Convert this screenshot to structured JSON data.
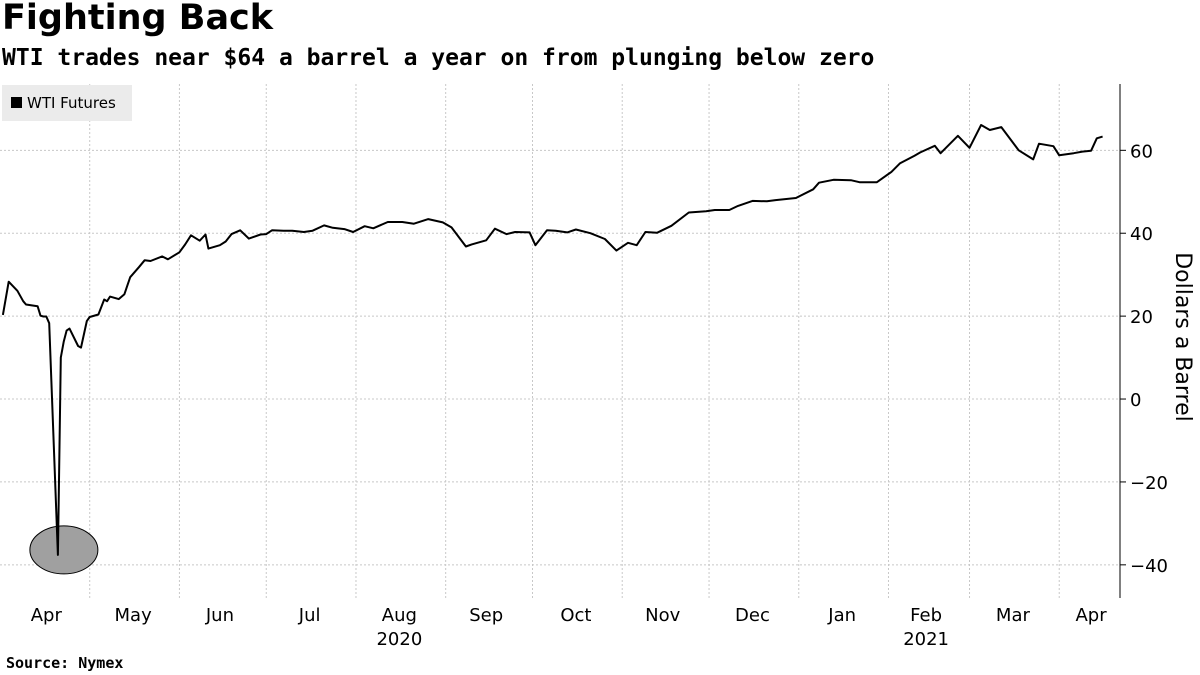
{
  "title": "Fighting Back",
  "subtitle": "WTI trades near $64 a barrel a year on from plunging below zero",
  "source": "Source: Nymex",
  "chart_data": {
    "type": "line",
    "title": "Fighting Back",
    "subtitle": "WTI trades near $64 a barrel a year on from plunging below zero",
    "ylabel": "Dollars a Barrel",
    "xlabel": "",
    "ylim": [
      -48,
      76
    ],
    "yticks": [
      -40,
      -20,
      0,
      20,
      40,
      60
    ],
    "y_axis_side": "right",
    "grid": true,
    "legend": {
      "placement": "top-left",
      "entries": [
        "WTI Futures"
      ]
    },
    "x_month_labels": [
      "Apr",
      "May",
      "Jun",
      "Jul",
      "Aug",
      "Sep",
      "Oct",
      "Nov",
      "Dec",
      "Jan",
      "Feb",
      "Mar",
      "Apr"
    ],
    "x_year_labels": [
      {
        "label": "2020",
        "under": "Aug"
      },
      {
        "label": "2021",
        "under": "Feb"
      }
    ],
    "annotation": {
      "type": "ellipse",
      "marks": "2020-04-20 low",
      "x": "2020-04-20",
      "y": -37.6
    },
    "series": [
      {
        "name": "WTI Futures",
        "color": "#000000",
        "x": [
          "2020-04-01",
          "2020-04-03",
          "2020-04-06",
          "2020-04-08",
          "2020-04-09",
          "2020-04-13",
          "2020-04-14",
          "2020-04-15",
          "2020-04-16",
          "2020-04-17",
          "2020-04-20",
          "2020-04-21",
          "2020-04-22",
          "2020-04-23",
          "2020-04-24",
          "2020-04-27",
          "2020-04-28",
          "2020-04-30",
          "2020-05-01",
          "2020-05-04",
          "2020-05-06",
          "2020-05-07",
          "2020-05-08",
          "2020-05-11",
          "2020-05-13",
          "2020-05-15",
          "2020-05-18",
          "2020-05-20",
          "2020-05-22",
          "2020-05-26",
          "2020-05-28",
          "2020-06-01",
          "2020-06-03",
          "2020-06-05",
          "2020-06-08",
          "2020-06-10",
          "2020-06-11",
          "2020-06-15",
          "2020-06-17",
          "2020-06-19",
          "2020-06-22",
          "2020-06-25",
          "2020-06-29",
          "2020-07-01",
          "2020-07-03",
          "2020-07-07",
          "2020-07-10",
          "2020-07-14",
          "2020-07-17",
          "2020-07-21",
          "2020-07-24",
          "2020-07-28",
          "2020-07-31",
          "2020-08-04",
          "2020-08-07",
          "2020-08-12",
          "2020-08-17",
          "2020-08-21",
          "2020-08-26",
          "2020-08-31",
          "2020-09-03",
          "2020-09-08",
          "2020-09-10",
          "2020-09-15",
          "2020-09-18",
          "2020-09-22",
          "2020-09-25",
          "2020-09-30",
          "2020-10-02",
          "2020-10-06",
          "2020-10-09",
          "2020-10-13",
          "2020-10-16",
          "2020-10-21",
          "2020-10-26",
          "2020-10-30",
          "2020-11-03",
          "2020-11-06",
          "2020-11-09",
          "2020-11-13",
          "2020-11-18",
          "2020-11-24",
          "2020-11-30",
          "2020-12-03",
          "2020-12-08",
          "2020-12-11",
          "2020-12-16",
          "2020-12-21",
          "2020-12-24",
          "2020-12-31",
          "2021-01-06",
          "2021-01-08",
          "2021-01-13",
          "2021-01-19",
          "2021-01-22",
          "2021-01-28",
          "2021-02-02",
          "2021-02-05",
          "2021-02-10",
          "2021-02-12",
          "2021-02-17",
          "2021-02-19",
          "2021-02-25",
          "2021-03-01",
          "2021-03-05",
          "2021-03-08",
          "2021-03-12",
          "2021-03-18",
          "2021-03-23",
          "2021-03-25",
          "2021-03-30",
          "2021-04-01",
          "2021-04-06",
          "2021-04-09",
          "2021-04-12",
          "2021-04-14",
          "2021-04-16"
        ],
        "y": [
          20.3,
          28.3,
          26.1,
          23.6,
          22.8,
          22.4,
          20.1,
          19.9,
          19.9,
          18.3,
          -37.6,
          10.0,
          13.8,
          16.5,
          17.0,
          12.8,
          12.4,
          18.8,
          19.8,
          20.4,
          24.0,
          23.6,
          24.7,
          24.1,
          25.3,
          29.4,
          31.8,
          33.5,
          33.3,
          34.4,
          33.7,
          35.4,
          37.3,
          39.5,
          38.2,
          39.7,
          36.3,
          37.1,
          38.0,
          39.8,
          40.7,
          38.7,
          39.7,
          39.8,
          40.7,
          40.6,
          40.6,
          40.3,
          40.6,
          41.9,
          41.3,
          41.0,
          40.3,
          41.7,
          41.2,
          42.7,
          42.7,
          42.3,
          43.4,
          42.6,
          41.4,
          36.8,
          37.3,
          38.3,
          41.1,
          39.8,
          40.3,
          40.2,
          37.1,
          40.7,
          40.6,
          40.2,
          40.9,
          40.0,
          38.6,
          35.8,
          37.7,
          37.1,
          40.3,
          40.1,
          41.8,
          45.0,
          45.3,
          45.6,
          45.6,
          46.6,
          47.8,
          47.7,
          48.0,
          48.5,
          50.6,
          52.2,
          52.9,
          52.8,
          52.3,
          52.3,
          54.8,
          56.9,
          58.7,
          59.5,
          61.1,
          59.3,
          63.5,
          60.6,
          66.1,
          64.9,
          65.6,
          60.0,
          57.8,
          61.6,
          61.0,
          58.8,
          59.3,
          59.7,
          59.9,
          62.9,
          63.3
        ]
      }
    ]
  }
}
